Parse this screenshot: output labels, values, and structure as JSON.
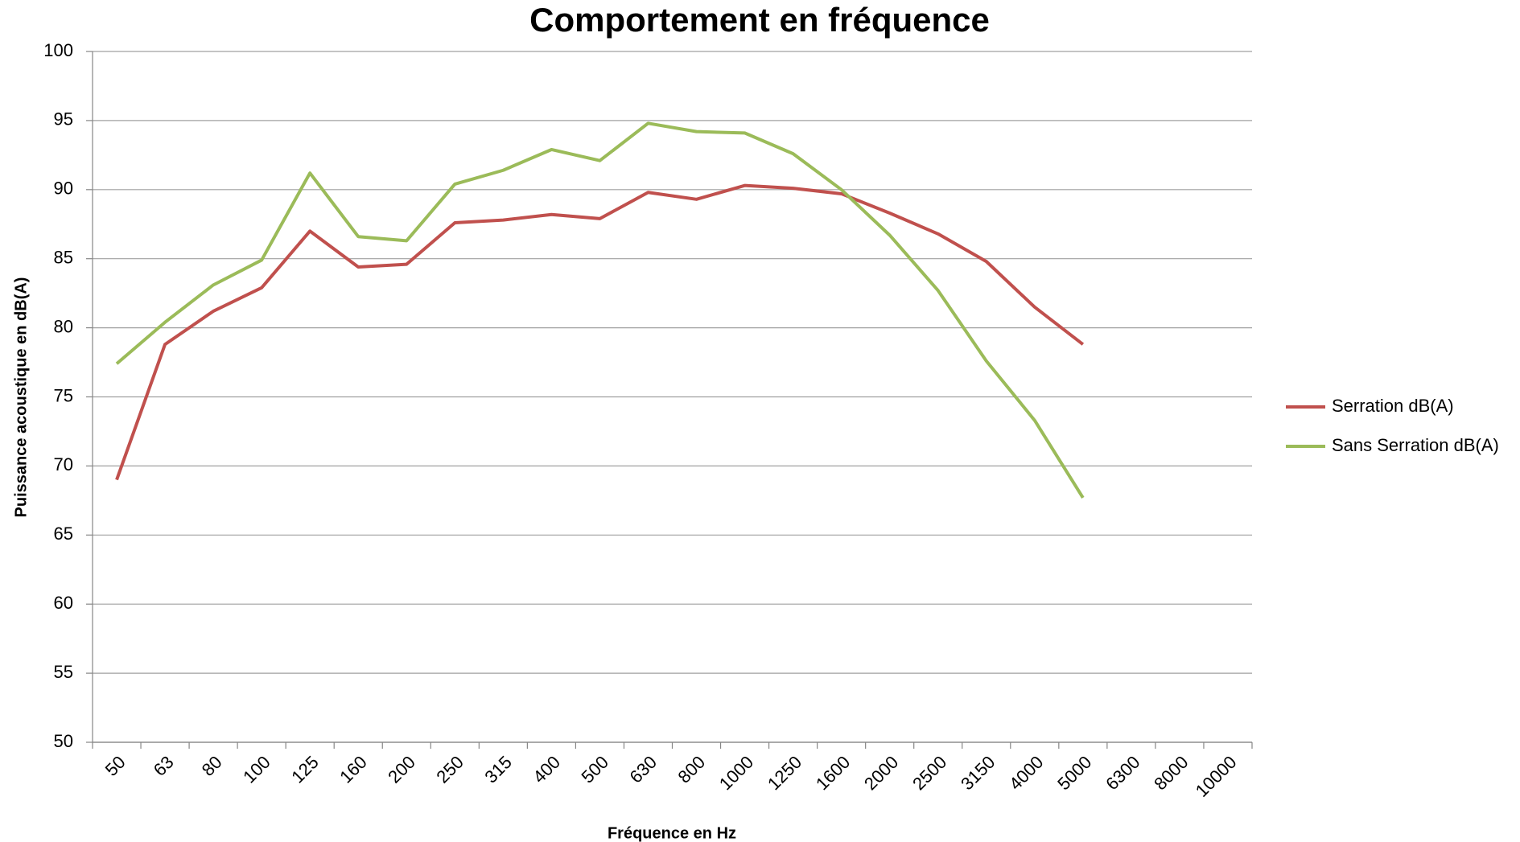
{
  "chart_data": {
    "type": "line",
    "title": "Comportement en fréquence",
    "x_label": "Fréquence en Hz",
    "y_label": "Puissance acoustique  en dB(A)",
    "categories": [
      "50",
      "63",
      "80",
      "100",
      "125",
      "160",
      "200",
      "250",
      "315",
      "400",
      "500",
      "630",
      "800",
      "1000",
      "1250",
      "1600",
      "2000",
      "2500",
      "3150",
      "4000",
      "5000",
      "6300",
      "8000",
      "10000"
    ],
    "series": [
      {
        "name": "Serration dB(A)",
        "color": "#c0504d",
        "values": [
          69,
          78.8,
          81.2,
          82.9,
          87,
          84.4,
          84.6,
          87.6,
          87.8,
          88.2,
          87.9,
          89.8,
          89.3,
          90.3,
          90.1,
          89.7,
          88.3,
          86.8,
          84.8,
          81.5,
          78.8,
          null,
          null,
          null
        ]
      },
      {
        "name": "Sans Serration dB(A)",
        "color": "#9bbb59",
        "values": [
          77.4,
          80.4,
          83.1,
          84.9,
          91.2,
          86.6,
          86.3,
          90.4,
          91.4,
          92.9,
          92.1,
          94.8,
          94.2,
          94.1,
          92.6,
          90.0,
          86.7,
          82.7,
          77.6,
          73.3,
          67.7,
          null,
          null,
          null
        ]
      }
    ],
    "ylim": [
      50,
      100
    ],
    "yticks": [
      50,
      55,
      60,
      65,
      70,
      75,
      80,
      85,
      90,
      95,
      100
    ],
    "grid": true,
    "legend": "right"
  }
}
